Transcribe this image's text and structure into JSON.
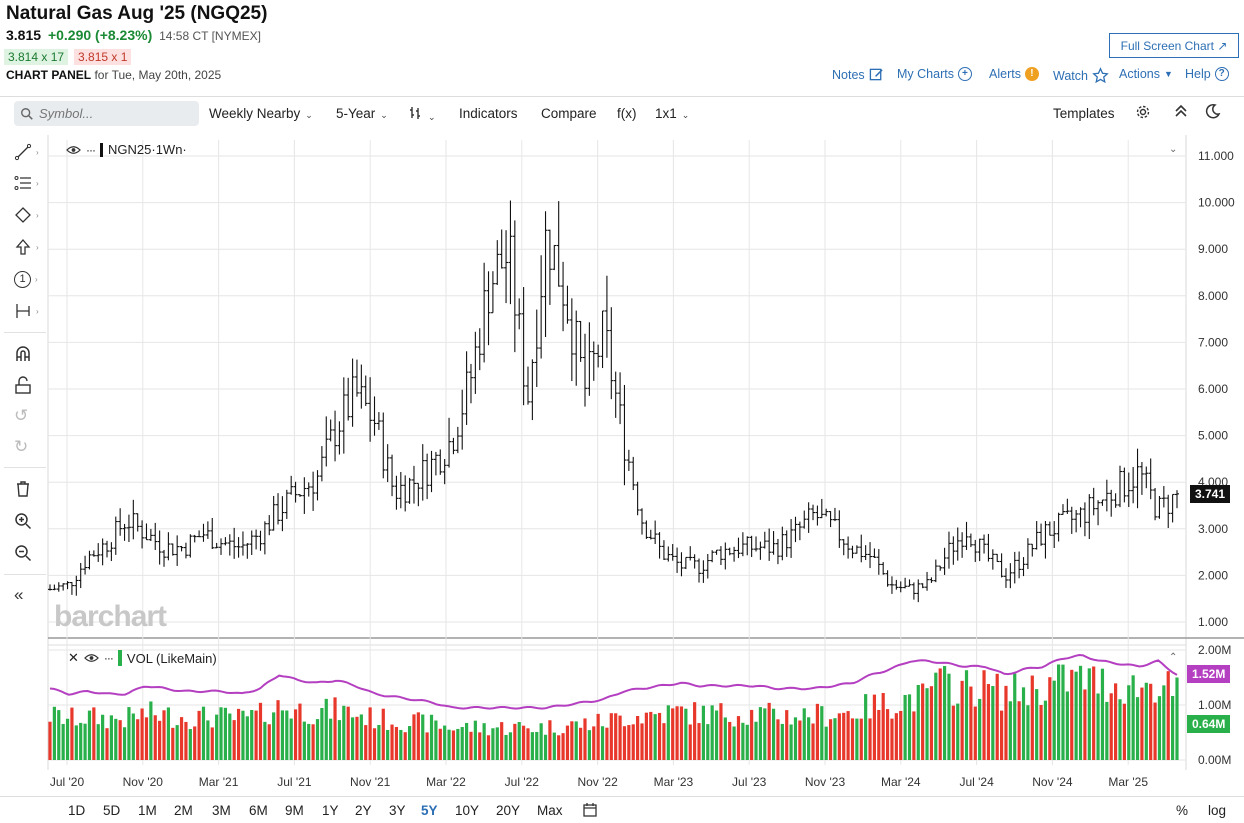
{
  "header": {
    "title": "Natural Gas Aug '25 (NGQ25)",
    "last": "3.815",
    "change": "+0.290 (+8.23%)",
    "time": "14:58 CT [NYMEX]",
    "bid": "3.814 x 17",
    "ask": "3.815 x 1",
    "panel_label": "CHART PANEL",
    "panel_date": "for Tue, May 20th, 2025",
    "fullscreen": "Full Screen Chart ↗"
  },
  "topmenu": {
    "notes": "Notes",
    "mycharts": "My Charts",
    "alerts": "Alerts",
    "watch": "Watch",
    "actions": "Actions",
    "help": "Help"
  },
  "toolbar": {
    "search_placeholder": "Symbol...",
    "aggregation": "Weekly Nearby",
    "period": "5-Year",
    "indicators": "Indicators",
    "compare": "Compare",
    "fx": "f(x)",
    "layout": "1x1",
    "templates": "Templates"
  },
  "legend": {
    "symbol": "NGN25",
    "interval": "·1Wn·",
    "volume": "VOL (LikeMain)"
  },
  "watermark": "barchart",
  "badges": {
    "price": "3.741",
    "volavg": "1.52M",
    "vol": "0.64M"
  },
  "ranges": [
    "1D",
    "5D",
    "1M",
    "2M",
    "3M",
    "6M",
    "9M",
    "1Y",
    "2Y",
    "3Y",
    "5Y",
    "10Y",
    "20Y",
    "Max"
  ],
  "active_range": "5Y",
  "bottom_right": {
    "pct": "%",
    "log": "log"
  },
  "colors": {
    "up_volume": "#2ab04a",
    "down_volume": "#e8382c",
    "volume_avg": "#b43fc1",
    "price_bar": "#111111",
    "accent": "#2d6fb4"
  },
  "chart_data": {
    "type": "line",
    "title": "Natural Gas Aug '25 (NGQ25)",
    "price_axis": {
      "ylim": [
        1.0,
        11.0
      ],
      "ticks": [
        "11.000",
        "10.000",
        "9.000",
        "8.000",
        "7.000",
        "6.000",
        "5.000",
        "4.000",
        "3.000",
        "2.000",
        "1.000"
      ]
    },
    "volume_axis": {
      "ylim": [
        0,
        2.0
      ],
      "ticks": [
        "2.00M",
        "1.00M",
        "0.00M"
      ]
    },
    "x_ticks": [
      "Jul '20",
      "Nov '20",
      "Mar '21",
      "Jul '21",
      "Nov '21",
      "Mar '22",
      "Jul '22",
      "Nov '22",
      "Mar '23",
      "Jul '23",
      "Nov '23",
      "Mar '24",
      "Jul '24",
      "Nov '24",
      "Mar '25"
    ],
    "grid": true,
    "series": [
      {
        "name": "NGN25",
        "x": [
          "Jun '20",
          "Jul '20",
          "Aug '20",
          "Sep '20",
          "Oct '20",
          "Nov '20",
          "Dec '20",
          "Jan '21",
          "Feb '21",
          "Mar '21",
          "Apr '21",
          "May '21",
          "Jun '21",
          "Jul '21",
          "Aug '21",
          "Sep '21",
          "Oct '21",
          "Nov '21",
          "Dec '21",
          "Jan '22",
          "Feb '22",
          "Mar '22",
          "Apr '22",
          "May '22",
          "Jun '22",
          "Jul '22",
          "Aug '22",
          "Sep '22",
          "Oct '22",
          "Nov '22",
          "Dec '22",
          "Jan '23",
          "Feb '23",
          "Mar '23",
          "Apr '23",
          "May '23",
          "Jun '23",
          "Jul '23",
          "Aug '23",
          "Sep '23",
          "Oct '23",
          "Nov '23",
          "Dec '23",
          "Jan '24",
          "Feb '24",
          "Mar '24",
          "Apr '24",
          "May '24",
          "Jun '24",
          "Jul '24",
          "Aug '24",
          "Sep '24",
          "Oct '24",
          "Nov '24",
          "Dec '24",
          "Jan '25",
          "Feb '25",
          "Mar '25",
          "Apr '25",
          "May '25"
        ],
        "values": [
          1.7,
          1.8,
          2.4,
          2.7,
          3.2,
          2.9,
          2.6,
          2.6,
          2.9,
          2.7,
          2.6,
          2.9,
          3.4,
          3.8,
          4.1,
          5.2,
          5.9,
          5.3,
          3.8,
          4.0,
          4.4,
          4.9,
          6.2,
          8.3,
          8.9,
          5.8,
          9.4,
          8.0,
          6.0,
          7.2,
          5.0,
          3.2,
          2.5,
          2.2,
          2.2,
          2.5,
          2.6,
          2.6,
          2.6,
          2.9,
          3.3,
          3.0,
          2.6,
          2.4,
          1.8,
          1.7,
          1.8,
          2.5,
          3.0,
          2.4,
          2.0,
          2.4,
          2.9,
          3.1,
          3.3,
          3.6,
          3.9,
          4.2,
          3.4,
          3.7
        ]
      },
      {
        "name": "VOL (LikeMain)",
        "values_avg_millions": [
          1.3,
          1.2,
          1.25,
          1.2,
          1.2,
          1.35,
          1.3,
          1.25,
          1.25,
          1.25,
          1.2,
          1.3,
          1.55,
          1.45,
          1.4,
          1.45,
          1.35,
          1.2,
          1.15,
          1.1,
          1.05,
          0.95,
          0.95,
          0.95,
          0.95,
          0.95,
          0.95,
          1.0,
          1.05,
          1.1,
          1.25,
          1.3,
          1.35,
          1.4,
          1.35,
          1.35,
          1.35,
          1.35,
          1.3,
          1.3,
          1.3,
          1.35,
          1.4,
          1.55,
          1.65,
          1.8,
          1.8,
          1.75,
          1.7,
          1.7,
          1.55,
          1.65,
          1.7,
          1.85,
          1.9,
          1.8,
          1.75,
          1.7,
          1.8,
          1.55
        ]
      }
    ]
  }
}
